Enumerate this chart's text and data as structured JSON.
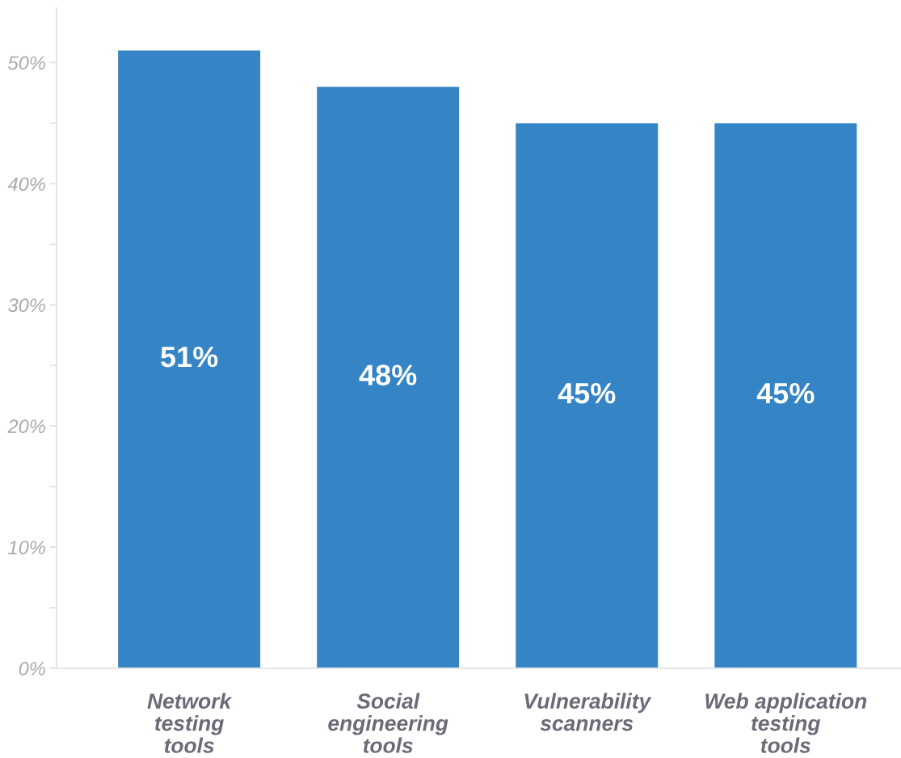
{
  "chart_data": {
    "type": "bar",
    "categories": [
      "Network\ntesting\ntools",
      "Social\nengineering\ntools",
      "Vulnerability\nscanners",
      "Web application\ntesting\ntools"
    ],
    "values": [
      51,
      48,
      45,
      45
    ],
    "color": "#3584c6",
    "value_labels": [
      "51%",
      "48%",
      "45%",
      "45%"
    ],
    "ylim": [
      0,
      54.5
    ],
    "yticks": [
      {
        "value": 0,
        "label": "0%"
      },
      {
        "value": 5,
        "label": null
      },
      {
        "value": 10,
        "label": "10%"
      },
      {
        "value": 15,
        "label": null
      },
      {
        "value": 20,
        "label": "20%"
      },
      {
        "value": 25,
        "label": null
      },
      {
        "value": 30,
        "label": "30%"
      },
      {
        "value": 35,
        "label": null
      },
      {
        "value": 40,
        "label": "40%"
      },
      {
        "value": 45,
        "label": null
      },
      {
        "value": 50,
        "label": "50%"
      }
    ],
    "grid": false
  }
}
